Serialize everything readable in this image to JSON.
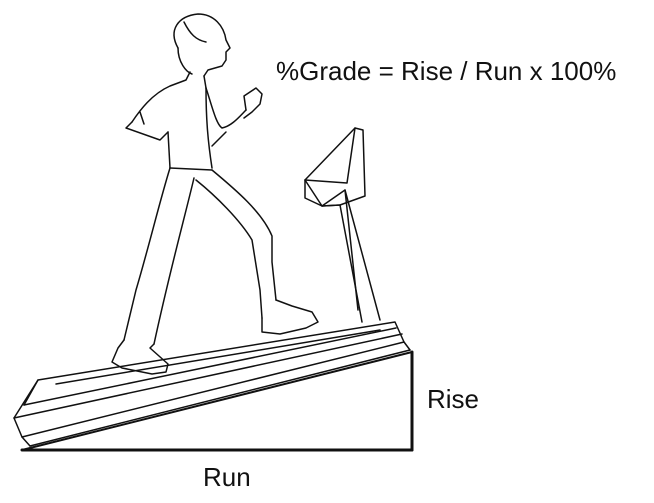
{
  "diagram": {
    "formula": "%Grade = Rise / Run x 100%",
    "rise_label": "Rise",
    "run_label": "Run"
  },
  "colors": {
    "ink": "#111111",
    "background": "#ffffff"
  }
}
